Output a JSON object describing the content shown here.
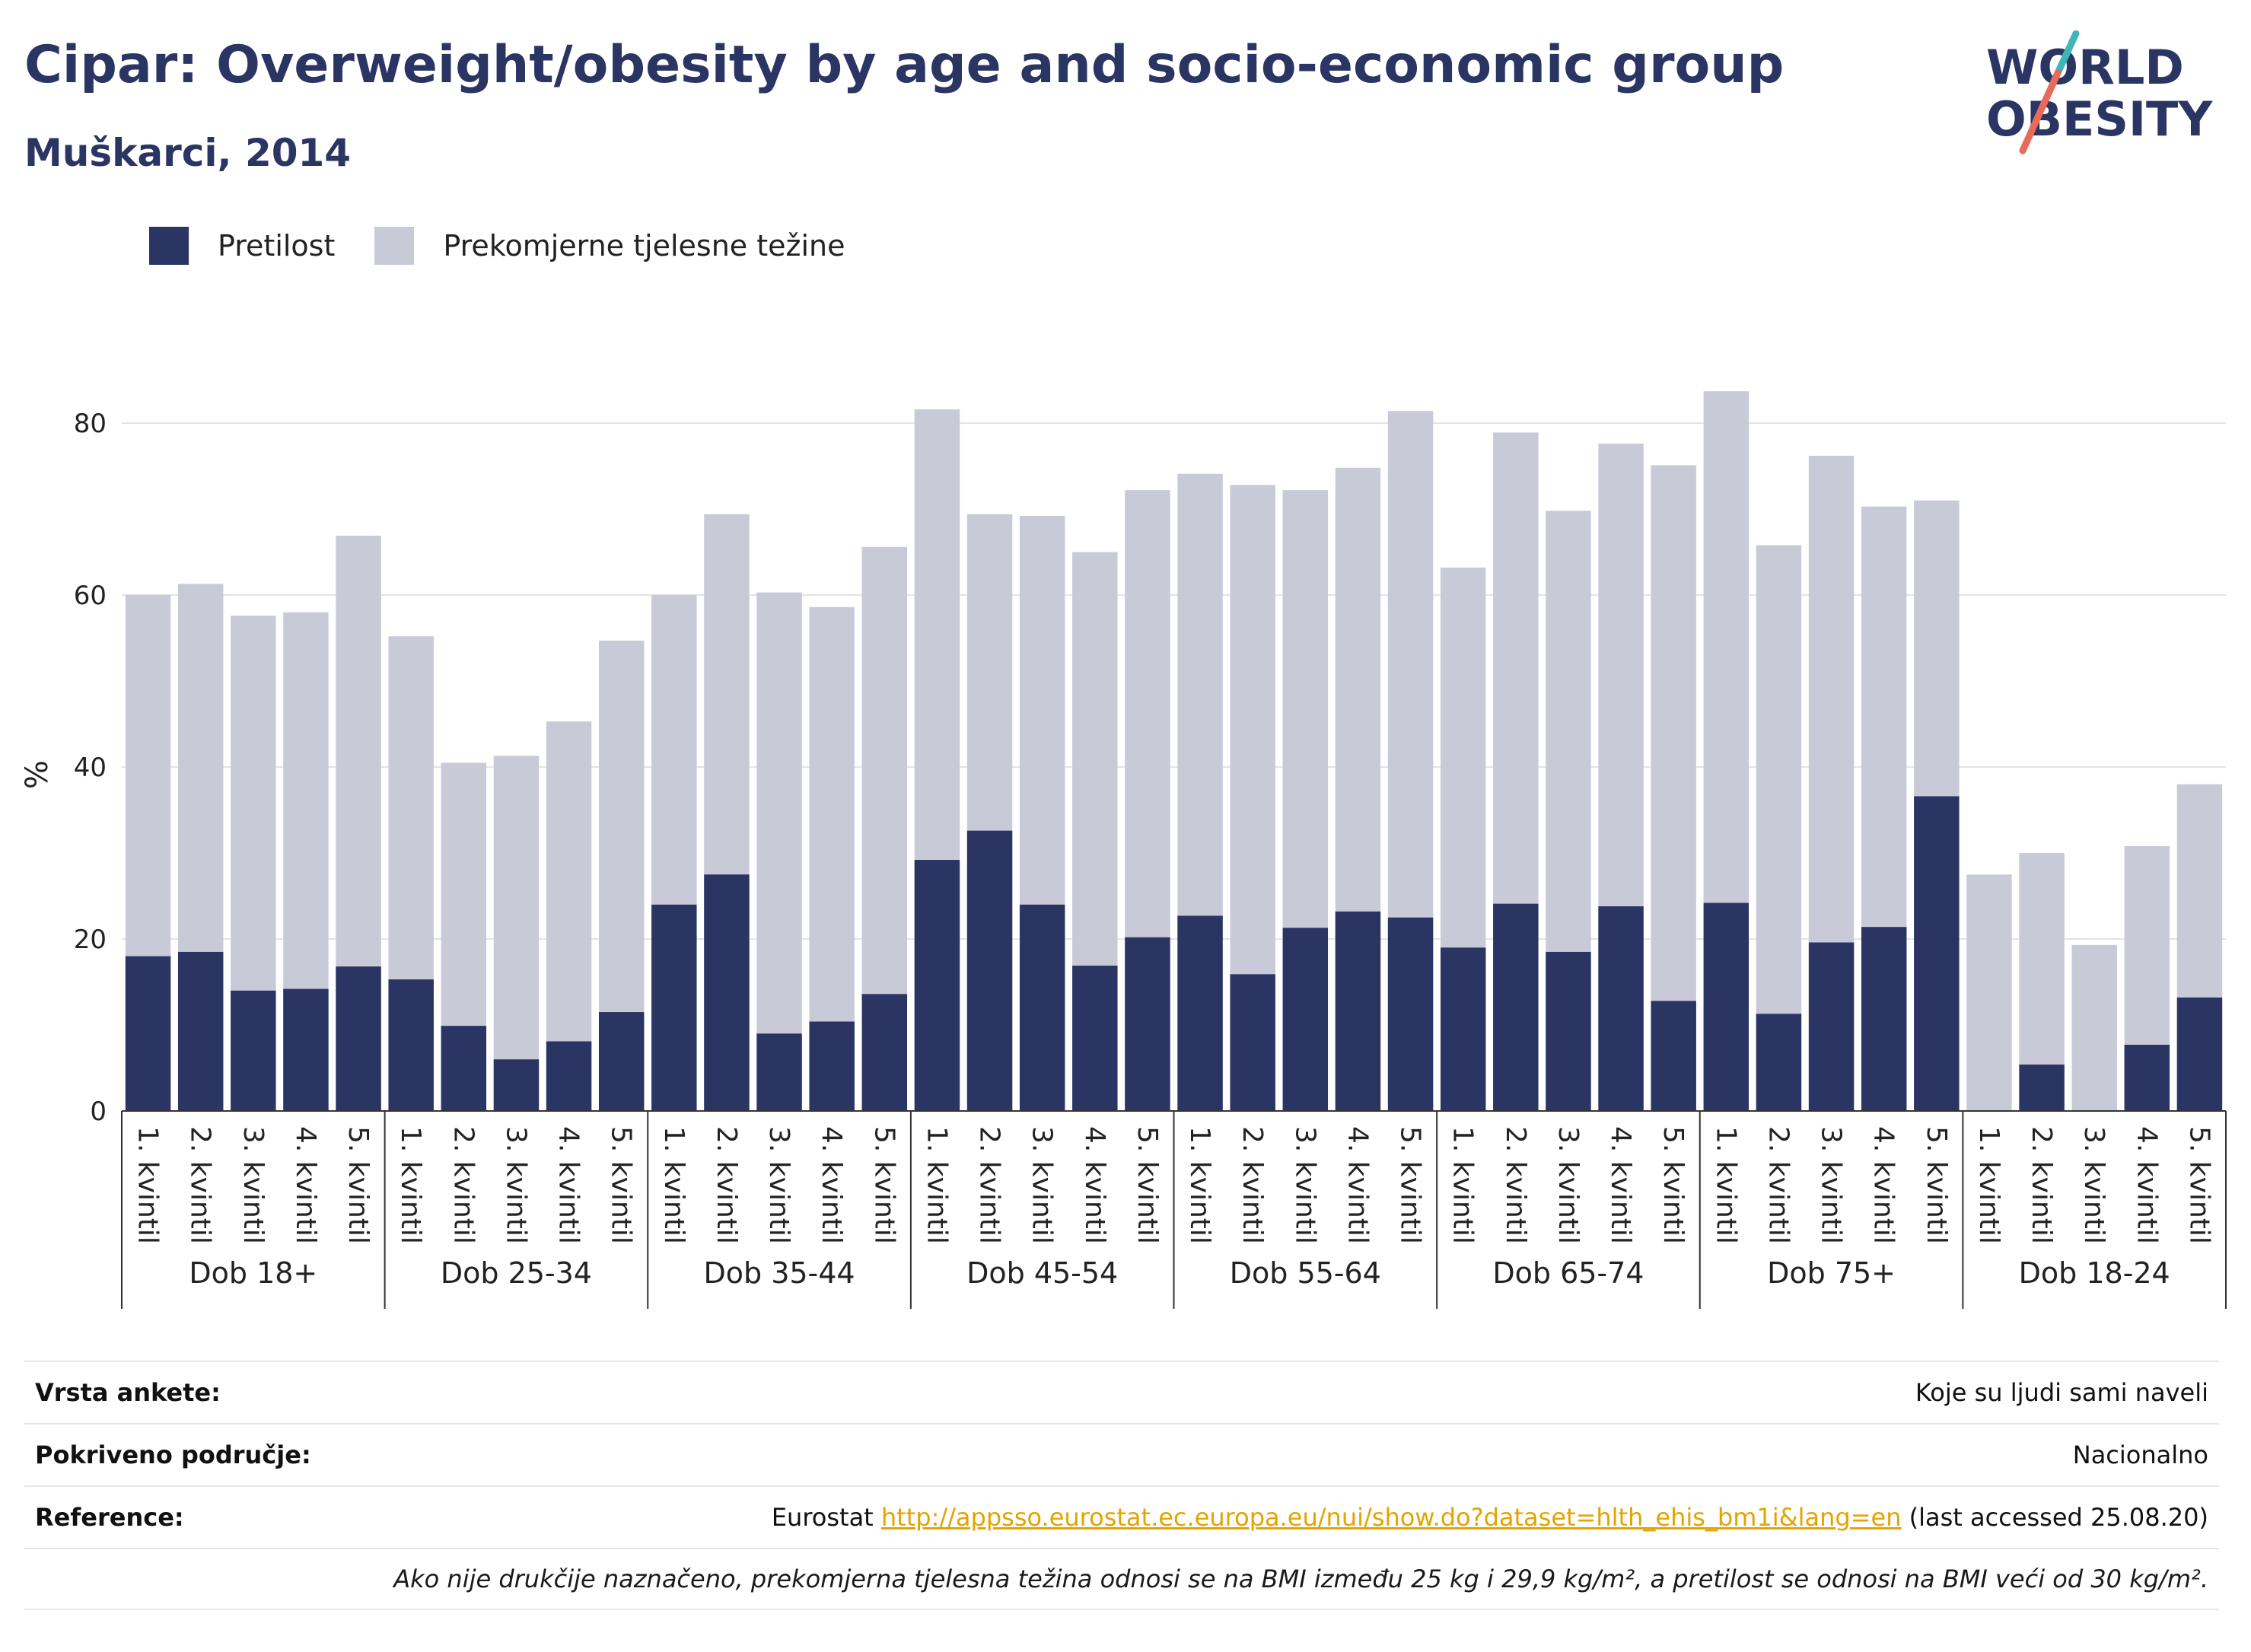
{
  "header": {
    "title": "Cipar: Overweight/obesity by age and socio-economic group",
    "subtitle": "Muškarci, 2014"
  },
  "logo": {
    "line1": "WORLD",
    "line2": "OBESITY"
  },
  "colors": {
    "obesity": "#2b3563",
    "overweight": "#c9cad8",
    "title": "#2b3563",
    "link": "#e3a400"
  },
  "legend": {
    "obesity_label": "Pretilost",
    "overweight_label": "Prekomjerne tjelesne težine"
  },
  "chart_data": {
    "type": "bar",
    "stacked": true,
    "ylabel": "%",
    "ylim": [
      0,
      85
    ],
    "yticks": [
      0,
      20,
      40,
      60,
      80
    ],
    "grid": true,
    "legend_position": "top-left",
    "categories": [
      "1. kvintil",
      "2. kvintil",
      "3. kvintil",
      "4. kvintil",
      "5. kvintil"
    ],
    "groups": [
      {
        "label": "Dob 18+",
        "obesity": [
          18,
          18.5,
          14,
          14.2,
          16.8
        ],
        "overweight_total": [
          60,
          61.3,
          57.6,
          58,
          66.9
        ]
      },
      {
        "label": "Dob 25-34",
        "obesity": [
          15.3,
          9.9,
          6,
          8.1,
          11.5
        ],
        "overweight_total": [
          55.2,
          40.5,
          41.3,
          45.3,
          54.7
        ]
      },
      {
        "label": "Dob 35-44",
        "obesity": [
          24,
          27.5,
          9,
          10.4,
          13.6
        ],
        "overweight_total": [
          60,
          69.4,
          60.3,
          58.6,
          65.6
        ]
      },
      {
        "label": "Dob 45-54",
        "obesity": [
          29.2,
          32.6,
          24,
          16.9,
          20.2
        ],
        "overweight_total": [
          81.6,
          69.4,
          69.2,
          65,
          72.2
        ]
      },
      {
        "label": "Dob 55-64",
        "obesity": [
          22.7,
          15.9,
          21.3,
          23.2,
          22.5
        ],
        "overweight_total": [
          74.1,
          72.8,
          72.2,
          74.8,
          81.4
        ]
      },
      {
        "label": "Dob 65-74",
        "obesity": [
          19,
          24.1,
          18.5,
          23.8,
          12.8
        ],
        "overweight_total": [
          63.2,
          78.9,
          69.8,
          77.6,
          75.1
        ]
      },
      {
        "label": "Dob 75+",
        "obesity": [
          24.2,
          11.3,
          19.6,
          21.4,
          36.6
        ],
        "overweight_total": [
          83.7,
          65.8,
          76.2,
          70.3,
          71
        ]
      },
      {
        "label": "Dob 18-24",
        "obesity": [
          0,
          5.4,
          0,
          7.7,
          13.2
        ],
        "overweight_total": [
          27.5,
          30,
          19.3,
          30.8,
          38
        ]
      }
    ]
  },
  "footer": {
    "survey_type_label": "Vrsta ankete:",
    "survey_type_value": "Koje su ljudi sami naveli",
    "coverage_label": "Pokriveno područje:",
    "coverage_value": "Nacionalno",
    "reference_label": "Reference:",
    "reference_prefix": "Eurostat ",
    "reference_link": "http://appsso.eurostat.ec.europa.eu/nui/show.do?dataset=hlth_ehis_bm1i&lang=en",
    "reference_suffix": " (last accessed 25.08.20)",
    "note": "Ako nije drukčije naznačeno, prekomjerna tjelesna težina odnosi se na BMI između 25 kg i 29,9 kg/m², a pretilost se odnosi na BMI veći od 30 kg/m²."
  }
}
